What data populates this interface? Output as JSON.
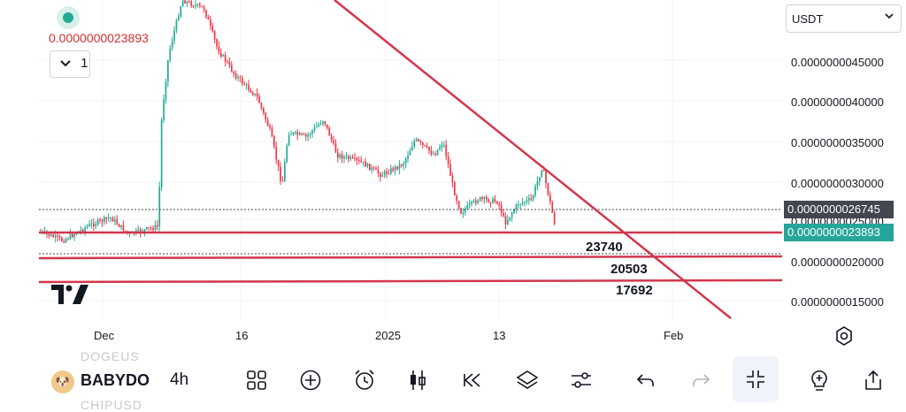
{
  "legend": {
    "last_price": "0.0000000023893",
    "collapse_count": "1",
    "collapse_icon": "chevron-down-icon"
  },
  "currency_selector": {
    "value": "USDT"
  },
  "price_scale": {
    "ticks": [
      "0.0000000045000",
      "0.0000000040000",
      "0.0000000035000",
      "0.0000000030000",
      "0.0000000020000",
      "0.0000000015000"
    ],
    "ghost_tick": "0.0000000025000",
    "previous_close_tag": "0.0000000026745",
    "last_price_tag": "0.0000000023893",
    "colors": {
      "previous_close_tag": "#434651",
      "last_price_tag": "#26a69a"
    }
  },
  "drawings": {
    "support_labels": [
      "23740",
      "20503",
      "17692"
    ],
    "line_color": "#d3364c"
  },
  "time_axis": {
    "labels": [
      "Dec",
      "16",
      "2025",
      "13",
      "Feb"
    ]
  },
  "bottom_bar": {
    "symbol_name": "BABYDO",
    "symbol_above": "DOGEUS",
    "symbol_below": "CHIPUSD",
    "interval": "4h",
    "tools": [
      "indicators-grid-icon",
      "add-icon",
      "alert-clock-icon",
      "candlestick-icon",
      "replay-icon",
      "layers-icon",
      "settings-sliders-icon",
      "undo-icon",
      "redo-icon",
      "collapse-fullscreen-icon",
      "add-idea-icon",
      "share-icon"
    ]
  },
  "colors": {
    "up": "#22ab94",
    "down": "#f23645",
    "accent": "#2962ff"
  }
}
